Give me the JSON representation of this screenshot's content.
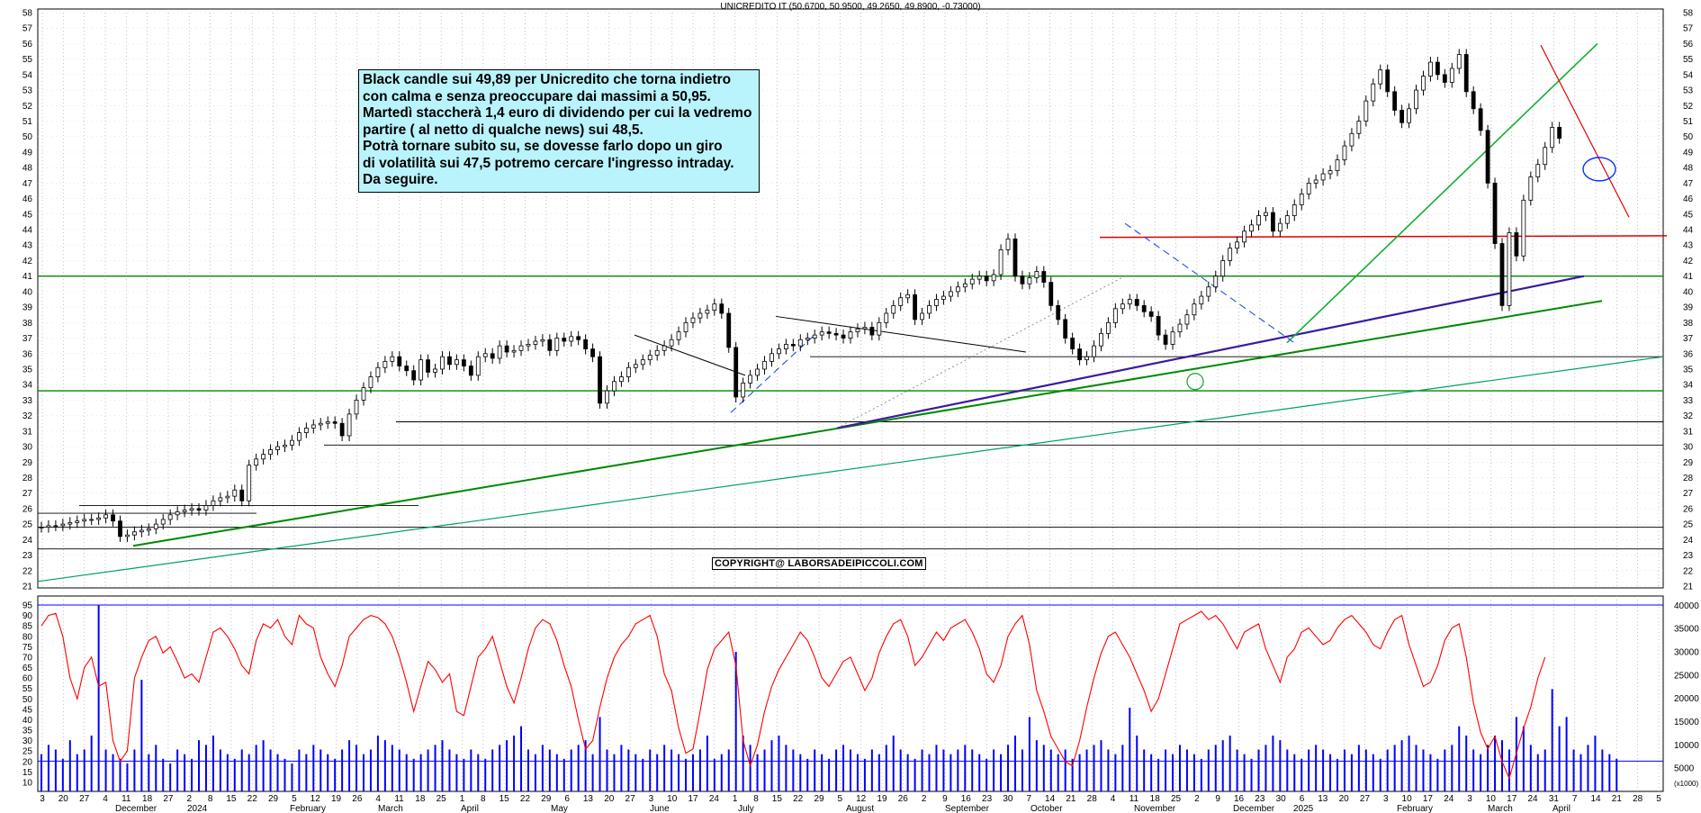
{
  "chart_data": {
    "type": "candlestick",
    "title": "UNICREDITO IT (50.6700, 50.9500, 49.2650, 49.8900, -0.73000)",
    "price_axis": {
      "ylim": [
        21,
        58
      ],
      "ticks": [
        21,
        22,
        23,
        24,
        25,
        26,
        27,
        28,
        29,
        30,
        31,
        32,
        33,
        34,
        35,
        36,
        37,
        38,
        39,
        40,
        41,
        42,
        43,
        44,
        45,
        46,
        47,
        48,
        49,
        50,
        51,
        52,
        53,
        54,
        55,
        56,
        57,
        58
      ]
    },
    "indicator_axis": {
      "left_ticks": [
        10,
        15,
        20,
        25,
        30,
        35,
        40,
        45,
        50,
        55,
        60,
        65,
        70,
        75,
        80,
        85,
        90,
        95
      ],
      "right_ticks": [
        5000,
        10000,
        15000,
        20000,
        25000,
        30000,
        35000,
        40000
      ],
      "right_unit": "(x1000)"
    },
    "x_day_ticks": [
      "3",
      "20",
      "27",
      "4",
      "11",
      "18",
      "27",
      "2",
      "8",
      "15",
      "22",
      "29",
      "5",
      "12",
      "19",
      "26",
      "4",
      "11",
      "18",
      "25",
      "1",
      "8",
      "15",
      "22",
      "29",
      "6",
      "13",
      "20",
      "27",
      "3",
      "10",
      "17",
      "24",
      "1",
      "8",
      "15",
      "22",
      "29",
      "5",
      "12",
      "19",
      "26",
      "2",
      "9",
      "16",
      "23",
      "30",
      "7",
      "14",
      "21",
      "28",
      "4",
      "11",
      "18",
      "25",
      "2",
      "9",
      "16",
      "23",
      "30",
      "6",
      "13",
      "20",
      "27",
      "3",
      "10",
      "17",
      "24",
      "3",
      "10",
      "17",
      "24",
      "31",
      "7",
      "14",
      "21",
      "28",
      "5"
    ],
    "x_month_labels": [
      "December",
      "2024",
      "February",
      "March",
      "April",
      "May",
      "June",
      "July",
      "August",
      "September",
      "October",
      "November",
      "December",
      "2025",
      "February",
      "March",
      "April"
    ],
    "last_bar": {
      "open": 50.67,
      "high": 50.95,
      "low": 49.265,
      "close": 49.89,
      "change": -0.73
    },
    "close_series": [
      24.8,
      24.9,
      24.9,
      25.0,
      25.1,
      25.2,
      25.3,
      25.3,
      25.4,
      25.6,
      25.2,
      24.2,
      24.3,
      24.5,
      24.6,
      24.7,
      25.0,
      25.3,
      25.6,
      25.8,
      25.9,
      26.0,
      25.9,
      26.2,
      26.5,
      26.7,
      26.8,
      27.2,
      26.5,
      28.8,
      29.2,
      29.5,
      29.8,
      30.0,
      30.1,
      30.4,
      30.9,
      31.2,
      31.4,
      31.5,
      31.6,
      31.5,
      30.7,
      32.1,
      33.0,
      33.8,
      34.5,
      35.1,
      35.5,
      35.8,
      35.2,
      34.9,
      34.3,
      35.6,
      34.8,
      35.0,
      35.8,
      35.3,
      35.6,
      35.2,
      34.6,
      35.8,
      36.0,
      35.7,
      36.5,
      36.1,
      36.2,
      36.5,
      36.6,
      36.8,
      36.9,
      36.2,
      37.0,
      36.8,
      37.1,
      36.9,
      36.3,
      35.8,
      32.8,
      33.6,
      34.2,
      34.5,
      35.1,
      35.3,
      35.6,
      35.9,
      36.2,
      36.5,
      36.9,
      37.4,
      38.0,
      38.3,
      38.6,
      38.8,
      39.2,
      38.6,
      36.4,
      33.2,
      34.1,
      34.6,
      35.0,
      35.5,
      36.0,
      36.3,
      36.6,
      36.5,
      36.9,
      37.0,
      37.2,
      37.4,
      37.3,
      37.2,
      37.0,
      37.4,
      37.6,
      37.7,
      37.2,
      38.0,
      38.6,
      39.1,
      39.6,
      39.8,
      38.2,
      38.6,
      39.1,
      39.5,
      39.7,
      40.0,
      40.3,
      40.5,
      40.8,
      41.0,
      40.7,
      41.1,
      42.7,
      43.4,
      41.0,
      40.5,
      40.9,
      41.3,
      40.6,
      39.1,
      38.2,
      37.0,
      36.3,
      35.6,
      35.8,
      36.5,
      37.3,
      38.0,
      38.9,
      39.2,
      39.5,
      39.1,
      38.7,
      38.4,
      37.2,
      36.6,
      37.4,
      37.9,
      38.5,
      39.2,
      39.7,
      40.3,
      41.0,
      42.0,
      42.8,
      43.2,
      43.9,
      44.3,
      44.9,
      45.1,
      43.9,
      44.4,
      44.9,
      45.6,
      46.3,
      47.0,
      47.2,
      47.6,
      47.8,
      48.5,
      49.4,
      50.2,
      51.0,
      52.3,
      53.4,
      54.3,
      52.9,
      51.7,
      50.9,
      51.8,
      53.0,
      53.9,
      54.8,
      54.0,
      53.5,
      54.4,
      55.3,
      52.9,
      51.8,
      50.4,
      47.0,
      43.1,
      39.1,
      43.8,
      42.3,
      45.9,
      47.4,
      48.2,
      49.3,
      50.6,
      49.89
    ],
    "rsi_series": [
      85,
      90,
      91,
      80,
      60,
      50,
      65,
      70,
      56,
      58,
      30,
      20,
      25,
      60,
      70,
      78,
      80,
      72,
      75,
      68,
      60,
      62,
      58,
      70,
      82,
      84,
      80,
      74,
      66,
      62,
      78,
      86,
      84,
      88,
      80,
      76,
      90,
      86,
      84,
      70,
      62,
      56,
      66,
      80,
      84,
      88,
      90,
      89,
      86,
      80,
      70,
      58,
      44,
      56,
      68,
      64,
      58,
      62,
      44,
      42,
      56,
      70,
      74,
      80,
      68,
      56,
      48,
      60,
      74,
      84,
      88,
      86,
      78,
      66,
      56,
      40,
      26,
      30,
      46,
      60,
      70,
      76,
      80,
      86,
      88,
      90,
      80,
      62,
      54,
      36,
      24,
      26,
      44,
      64,
      74,
      78,
      82,
      66,
      30,
      18,
      28,
      44,
      56,
      64,
      70,
      76,
      82,
      78,
      70,
      60,
      56,
      62,
      68,
      70,
      62,
      54,
      60,
      72,
      80,
      86,
      88,
      80,
      66,
      70,
      76,
      82,
      78,
      84,
      86,
      88,
      82,
      74,
      62,
      58,
      66,
      80,
      86,
      90,
      76,
      54,
      44,
      32,
      26,
      20,
      18,
      30,
      46,
      60,
      72,
      80,
      82,
      76,
      70,
      62,
      54,
      44,
      50,
      62,
      74,
      86,
      88,
      90,
      92,
      88,
      90,
      86,
      80,
      74,
      82,
      84,
      86,
      74,
      66,
      58,
      70,
      74,
      82,
      84,
      80,
      76,
      78,
      84,
      88,
      90,
      86,
      82,
      76,
      74,
      82,
      88,
      90,
      76,
      66,
      56,
      58,
      66,
      78,
      84,
      86,
      70,
      48,
      34,
      26,
      32,
      20,
      12,
      24,
      36,
      46,
      60,
      70
    ],
    "volume_series": [
      8,
      10,
      9,
      7,
      11,
      8,
      9,
      12,
      40,
      9,
      8,
      7,
      6,
      9,
      24,
      8,
      10,
      7,
      6,
      9,
      8,
      7,
      11,
      10,
      12,
      9,
      8,
      7,
      9,
      8,
      10,
      11,
      9,
      8,
      7,
      6,
      9,
      8,
      10,
      9,
      8,
      7,
      9,
      11,
      10,
      8,
      9,
      12,
      11,
      10,
      9,
      8,
      7,
      8,
      9,
      10,
      11,
      9,
      8,
      7,
      9,
      8,
      7,
      9,
      10,
      11,
      12,
      14,
      9,
      8,
      10,
      9,
      8,
      7,
      9,
      10,
      11,
      8,
      16,
      9,
      8,
      10,
      9,
      8,
      7,
      9,
      8,
      10,
      9,
      8,
      7,
      8,
      9,
      12,
      7,
      8,
      9,
      30,
      12,
      10,
      8,
      9,
      11,
      12,
      10,
      9,
      8,
      7,
      9,
      8,
      7,
      9,
      10,
      9,
      8,
      7,
      9,
      8,
      10,
      12,
      9,
      8,
      7,
      9,
      8,
      10,
      9,
      8,
      9,
      10,
      9,
      8,
      7,
      9,
      8,
      10,
      12,
      9,
      16,
      11,
      10,
      9,
      8,
      9,
      7,
      8,
      9,
      10,
      11,
      9,
      8,
      10,
      18,
      12,
      9,
      8,
      7,
      9,
      8,
      10,
      9,
      8,
      7,
      9,
      10,
      11,
      12,
      9,
      8,
      7,
      9,
      10,
      12,
      11,
      9,
      8,
      7,
      9,
      10,
      9,
      8,
      7,
      9,
      8,
      10,
      9,
      8,
      7,
      9,
      10,
      11,
      12,
      10,
      9,
      8,
      7,
      9,
      10,
      14,
      12,
      9,
      8,
      10,
      12,
      11,
      9,
      16,
      14,
      10,
      8,
      9,
      22,
      14,
      16,
      9,
      8,
      10,
      12,
      9,
      8,
      7
    ],
    "series": [
      {
        "name": "price",
        "color": "#000000"
      },
      {
        "name": "oscillator",
        "color": "#ff0000"
      },
      {
        "name": "volume",
        "color": "#0000ff"
      }
    ]
  },
  "annotation": {
    "lines": [
      "Black candle sui 49,89 per Unicredito che torna indietro",
      "con calma e senza preoccupare dai massimi a 50,95.",
      "Martedì staccherà 1,4 euro di dividendo per cui la vedremo",
      "partire ( al netto di qualche news) sui 48,5.",
      "Potrà tornare subito su, se dovesse farlo dopo un giro",
      "di volatilità sui 47,5 potremo cercare l'ingresso intraday.",
      "Da seguire."
    ]
  },
  "copyright": "COPYRIGHT@ LABORSADEIPICCOLI.COM"
}
